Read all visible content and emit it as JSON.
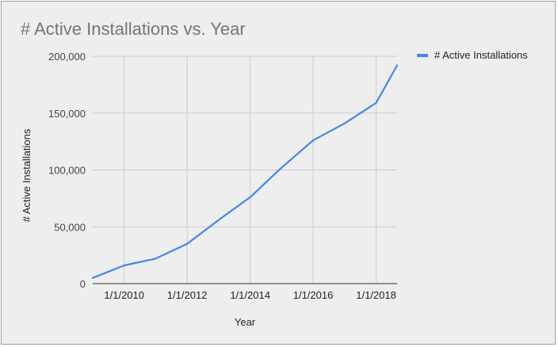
{
  "chart_data": {
    "type": "line",
    "title": "# Active Installations vs. Year",
    "xlabel": "Year",
    "ylabel": "# Active Installations",
    "x": [
      "2009-01-01",
      "2010-01-01",
      "2011-01-01",
      "2012-01-01",
      "2013-01-01",
      "2014-01-01",
      "2015-01-01",
      "2016-01-01",
      "2017-01-01",
      "2018-01-01",
      "2018-09-01"
    ],
    "x_ticks": [
      "1/1/2010",
      "1/1/2012",
      "1/1/2014",
      "1/1/2016",
      "1/1/2018"
    ],
    "x_tick_dates": [
      "2010-01-01",
      "2012-01-01",
      "2014-01-01",
      "2016-01-01",
      "2018-01-01"
    ],
    "xlim": [
      "2009-01-01",
      "2018-09-01"
    ],
    "y_ticks": [
      "0",
      "50,000",
      "100,000",
      "150,000",
      "200,000"
    ],
    "y_tick_values": [
      0,
      50000,
      100000,
      150000,
      200000
    ],
    "ylim": [
      0,
      200000
    ],
    "series": [
      {
        "name": "# Active Installations",
        "color": "#4285f4",
        "values": [
          5000,
          16000,
          22000,
          35000,
          56000,
          76000,
          102000,
          126000,
          141000,
          159000,
          192000
        ]
      }
    ],
    "grid": true,
    "legend": "right"
  }
}
